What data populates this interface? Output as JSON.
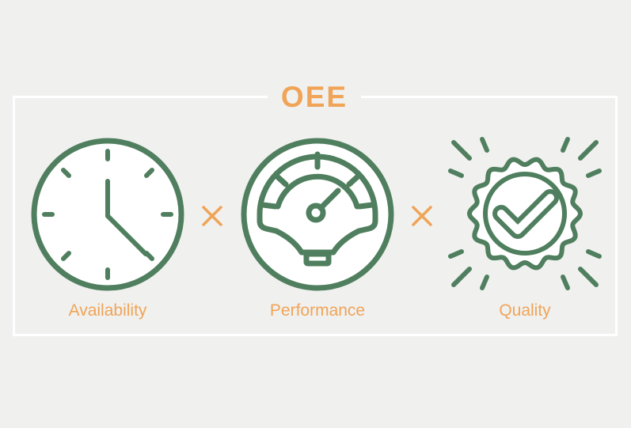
{
  "title": "OEE",
  "factors": [
    {
      "label": "Availability",
      "icon": "clock-icon"
    },
    {
      "label": "Performance",
      "icon": "speedometer-icon"
    },
    {
      "label": "Quality",
      "icon": "quality-badge-check-icon"
    }
  ],
  "operator_icon": "multiply-icon",
  "colors": {
    "background": "#f0f0ef",
    "icon_green": "#4f7f5e",
    "accent_orange": "#f0a457",
    "frame": "#ffffff",
    "icon_fill": "#ffffff"
  }
}
